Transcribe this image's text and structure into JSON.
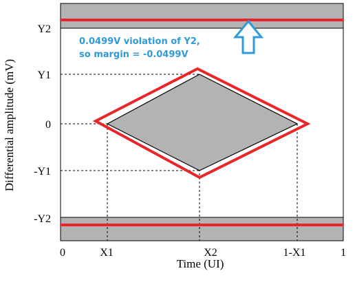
{
  "axes": {
    "xlabel": "Time (UI)",
    "ylabel": "Differential amplitude (mV)",
    "x_ticks": [
      "0",
      "X1",
      "X2",
      "1-X1",
      "1"
    ],
    "y_ticks": [
      "Y2",
      "Y1",
      "0",
      "-Y1",
      "-Y2"
    ]
  },
  "annotation": {
    "line1": "0.0499V violation of Y2,",
    "line2": "so margin = -0.0499V"
  },
  "colors": {
    "mask_fill": "#b3b3b3",
    "eye_outline": "#e8262b",
    "annotation_text": "#2f9ad8",
    "arrow": "#2f9ad8"
  },
  "icons": {
    "arrow": "up-arrow-icon"
  }
}
